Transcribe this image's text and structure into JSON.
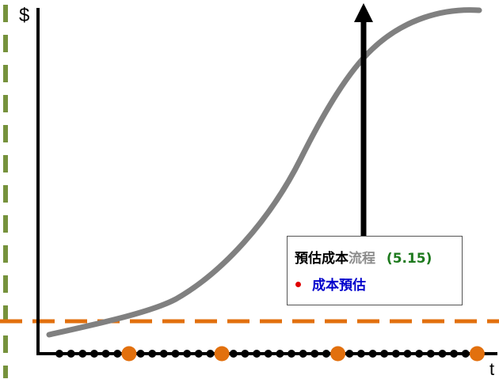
{
  "axes": {
    "y_label": "$",
    "x_label": "t"
  },
  "legend": {
    "row1": {
      "part1": "預估成本",
      "part2": "流程",
      "part3": "(5.15)"
    },
    "row2": {
      "text": "成本預估"
    }
  },
  "colors": {
    "curve": "#808080",
    "orange": "#E2700E",
    "green": "#76923C",
    "legend_green": "#1E7A1E",
    "legend_gray": "#8C8C8C",
    "legend_blue": "#0000CC",
    "bullet_red": "#E00000",
    "black": "#000000"
  }
}
